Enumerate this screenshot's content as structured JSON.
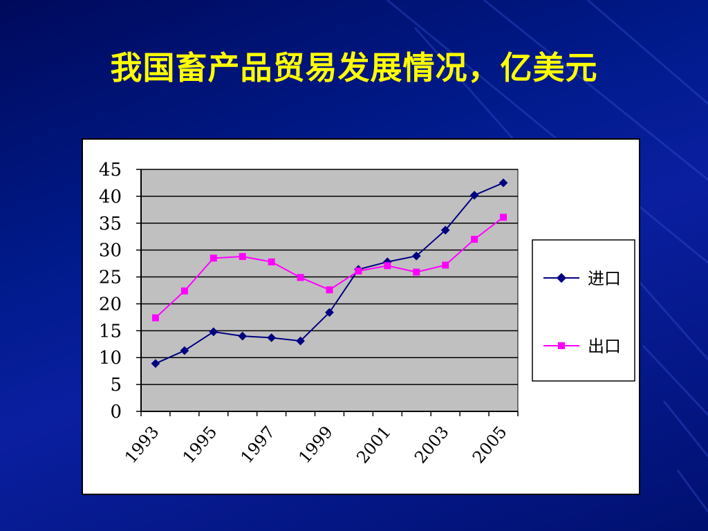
{
  "slide": {
    "title": "我国畜产品贸易发展情况，亿美元"
  },
  "colors": {
    "background": "#001a8a",
    "title": "#ffff00",
    "plot_area": "#c0c0c0",
    "import_series": "#000080",
    "export_series": "#ff00ff"
  },
  "chart_data": {
    "type": "line",
    "title": "",
    "xlabel": "",
    "ylabel": "",
    "x": [
      1993,
      1994,
      1995,
      1996,
      1997,
      1998,
      1999,
      2000,
      2001,
      2002,
      2003,
      2004,
      2005
    ],
    "x_tick_labels": [
      "1993",
      "1995",
      "1997",
      "1999",
      "2001",
      "2003",
      "2005"
    ],
    "y_tick_labels": [
      "0",
      "5",
      "10",
      "15",
      "20",
      "25",
      "30",
      "35",
      "40",
      "45"
    ],
    "ylim": [
      0,
      45
    ],
    "grid": true,
    "legend_position": "right",
    "series": [
      {
        "name": "进口",
        "marker": "diamond",
        "color": "#000080",
        "values": [
          8.9,
          11.3,
          14.8,
          14.0,
          13.7,
          13.1,
          18.4,
          26.4,
          27.8,
          28.9,
          33.7,
          40.2,
          42.5
        ]
      },
      {
        "name": "出口",
        "marker": "square",
        "color": "#ff00ff",
        "values": [
          17.4,
          22.4,
          28.5,
          28.8,
          27.8,
          24.9,
          22.6,
          26.1,
          27.1,
          25.9,
          27.2,
          32.0,
          36.1
        ]
      }
    ]
  }
}
